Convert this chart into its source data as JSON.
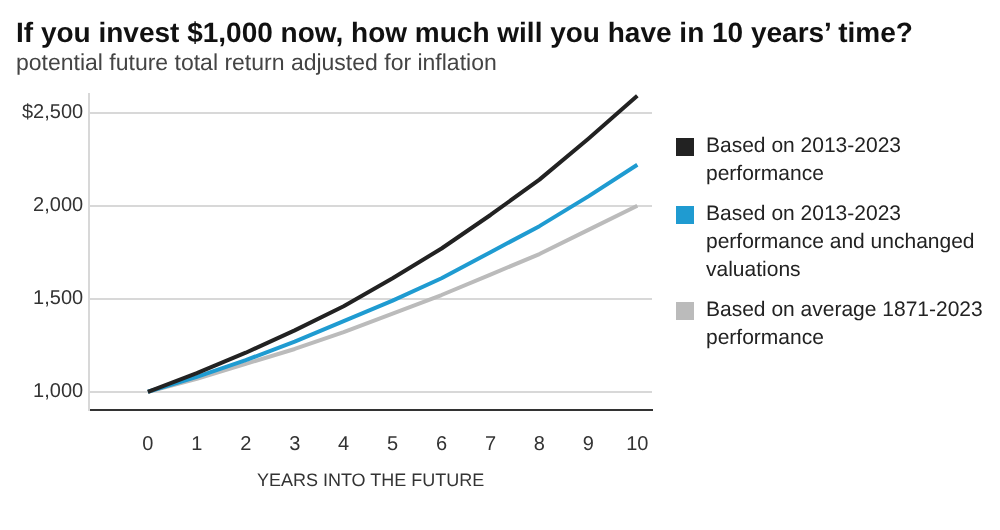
{
  "chart_data": {
    "type": "line",
    "title": "If you invest $1,000 now, how much will you have in 10 years’ time?",
    "subtitle": "potential future total return adjusted for inflation",
    "xlabel": "YEARS INTO THE FUTURE",
    "x": [
      0,
      1,
      2,
      3,
      4,
      5,
      6,
      7,
      8,
      9,
      10
    ],
    "series": [
      {
        "name": "Based on 2013-2023 performance",
        "color": "#222222",
        "values": [
          1000,
          1100,
          1210,
          1330,
          1460,
          1610,
          1770,
          1950,
          2140,
          2360,
          2590
        ]
      },
      {
        "name": "Based on 2013-2023 performance and unchanged valuations",
        "color": "#1f9bd1",
        "values": [
          1000,
          1080,
          1170,
          1270,
          1380,
          1490,
          1610,
          1750,
          1890,
          2050,
          2220
        ]
      },
      {
        "name": "Based on average 1871-2023 performance",
        "color": "#bbbbbb",
        "values": [
          1000,
          1070,
          1150,
          1230,
          1320,
          1420,
          1520,
          1630,
          1740,
          1870,
          2000
        ]
      }
    ],
    "xlim": [
      -1.2,
      10.3
    ],
    "xticks": [
      0,
      1,
      2,
      3,
      4,
      5,
      6,
      7,
      8,
      9,
      10
    ],
    "ylim": [
      900,
      2600
    ],
    "yticks": [
      {
        "value": 1000,
        "label": "1,000"
      },
      {
        "value": 1500,
        "label": "1,500"
      },
      {
        "value": 2000,
        "label": "2,000"
      },
      {
        "value": 2500,
        "label": "$2,500"
      }
    ],
    "grid": "y",
    "legend": "right",
    "marker": "none",
    "line_style": "solid"
  }
}
